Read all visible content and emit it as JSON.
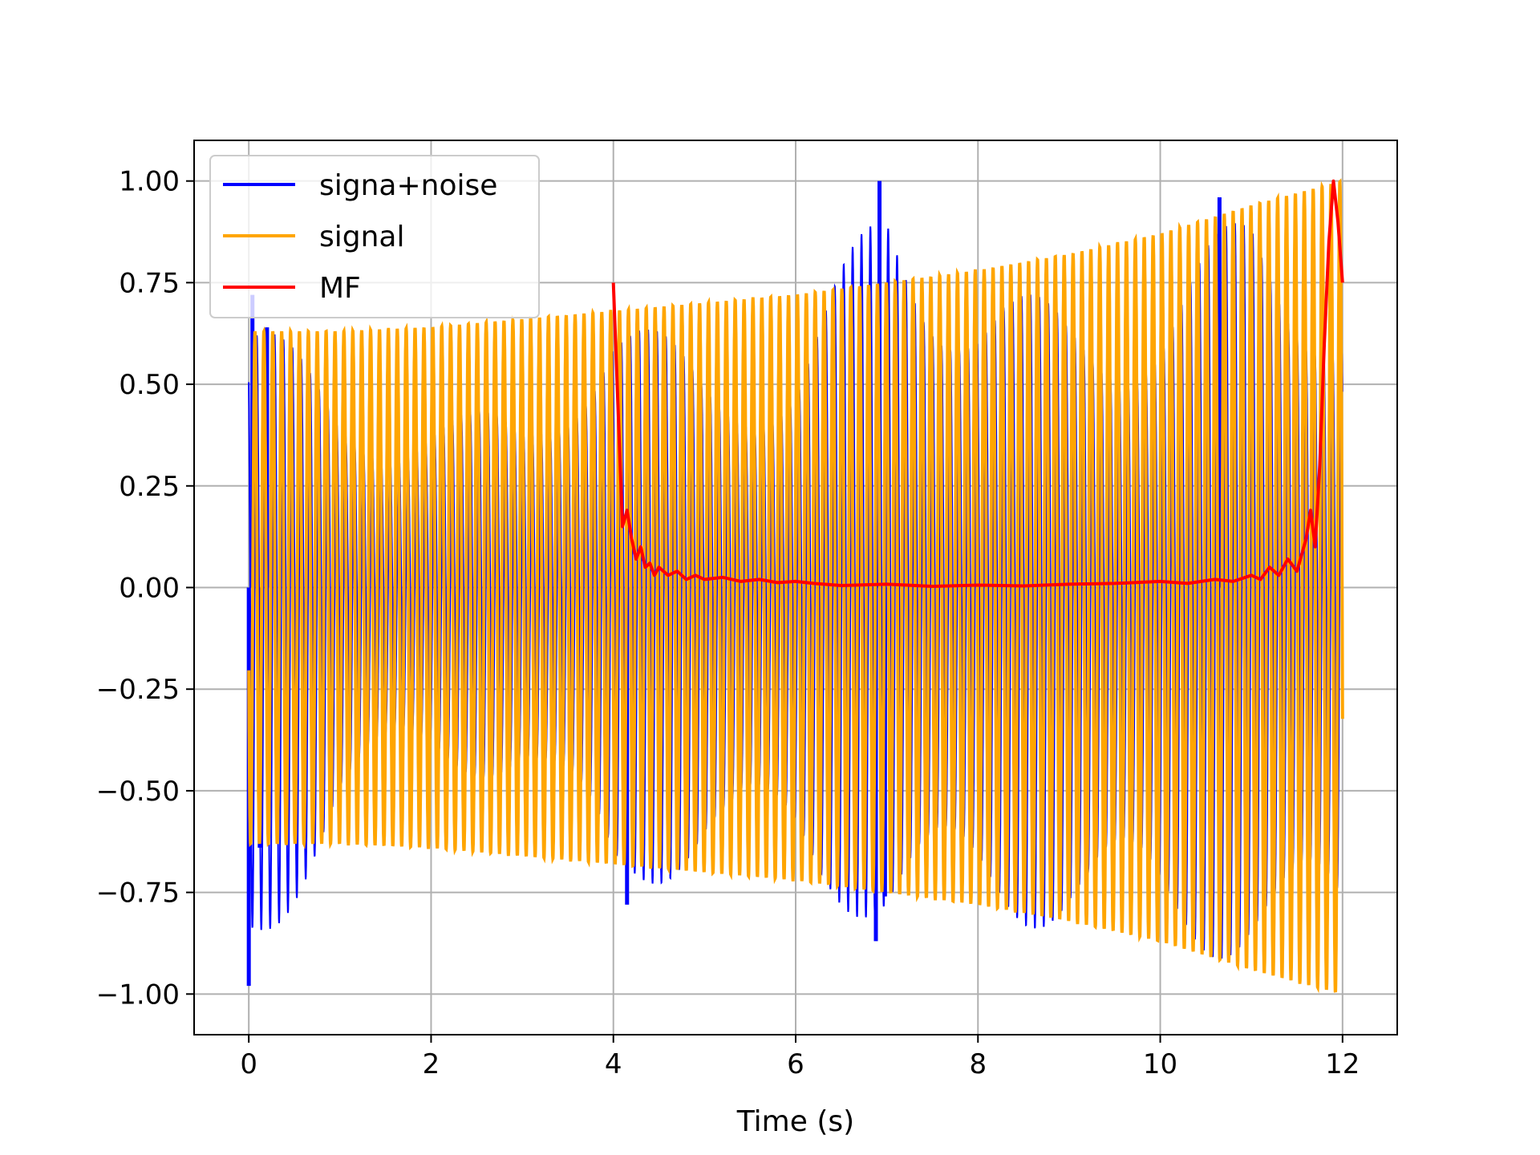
{
  "chart_data": {
    "type": "line",
    "title": "",
    "xlabel": "Time (s)",
    "ylabel": "",
    "xlim": [
      -0.6,
      12.6
    ],
    "ylim": [
      -1.1,
      1.1
    ],
    "grid": true,
    "legend_position": "top-left",
    "xticks": [
      0,
      2,
      4,
      6,
      8,
      10,
      12
    ],
    "xtick_labels": [
      "0",
      "2",
      "4",
      "6",
      "8",
      "10",
      "12"
    ],
    "yticks": [
      -1.0,
      -0.75,
      -0.5,
      -0.25,
      0.0,
      0.25,
      0.5,
      0.75,
      1.0
    ],
    "ytick_labels": [
      "−1.00",
      "−0.75",
      "−0.50",
      "−0.25",
      "0.00",
      "0.25",
      "0.50",
      "0.75",
      "1.00"
    ],
    "series": [
      {
        "name": "signa+noise",
        "color": "#0000ff",
        "envelope": {
          "x": [
            0,
            1,
            2,
            3,
            4,
            5,
            6,
            7,
            8,
            9,
            10,
            11,
            12
          ],
          "upper": [
            0.72,
            0.45,
            0.44,
            0.43,
            0.71,
            0.55,
            0.57,
            1.0,
            0.75,
            0.7,
            0.72,
            0.96,
            0.75
          ],
          "lower": [
            -0.98,
            -0.57,
            -0.45,
            -0.48,
            -0.78,
            -0.68,
            -0.7,
            -0.87,
            -0.82,
            -0.85,
            -0.9,
            -0.92,
            -0.98
          ]
        },
        "spikes": [
          {
            "x": 0.0,
            "y": -0.98
          },
          {
            "x": 0.04,
            "y": 0.72
          },
          {
            "x": 0.12,
            "y": -0.64
          },
          {
            "x": 0.2,
            "y": 0.64
          },
          {
            "x": 4.15,
            "y": -0.78
          },
          {
            "x": 6.88,
            "y": -0.87
          },
          {
            "x": 6.92,
            "y": 1.0
          },
          {
            "x": 6.98,
            "y": -0.76
          },
          {
            "x": 10.65,
            "y": 0.96
          }
        ]
      },
      {
        "name": "signal",
        "color": "#ffa500",
        "t_start": 0,
        "t_end": 12,
        "freq_hz": 10.25,
        "amplitude": {
          "x": [
            0,
            1,
            2,
            3,
            4,
            5,
            6,
            7,
            8,
            9,
            10,
            11,
            11.5,
            12
          ],
          "y": [
            0.63,
            0.63,
            0.64,
            0.66,
            0.68,
            0.7,
            0.72,
            0.75,
            0.78,
            0.82,
            0.87,
            0.94,
            0.97,
            1.0
          ]
        }
      },
      {
        "name": "MF",
        "color": "#ff0000",
        "x": [
          4.0,
          4.05,
          4.1,
          4.15,
          4.2,
          4.25,
          4.3,
          4.35,
          4.4,
          4.45,
          4.5,
          4.6,
          4.7,
          4.8,
          4.9,
          5.0,
          5.2,
          5.4,
          5.6,
          5.8,
          6.0,
          6.2,
          6.5,
          7.0,
          7.5,
          8.0,
          8.5,
          9.0,
          9.5,
          10.0,
          10.3,
          10.6,
          10.8,
          11.0,
          11.1,
          11.2,
          11.3,
          11.4,
          11.5,
          11.6,
          11.65,
          11.7,
          11.75,
          11.8,
          11.85,
          11.9,
          11.95,
          12.0
        ],
        "y": [
          0.75,
          0.45,
          0.15,
          0.19,
          0.12,
          0.07,
          0.1,
          0.05,
          0.06,
          0.03,
          0.05,
          0.03,
          0.04,
          0.02,
          0.03,
          0.02,
          0.025,
          0.015,
          0.02,
          0.012,
          0.015,
          0.01,
          0.005,
          0.008,
          0.003,
          0.006,
          0.004,
          0.008,
          0.01,
          0.015,
          0.01,
          0.02,
          0.015,
          0.03,
          0.02,
          0.05,
          0.03,
          0.07,
          0.04,
          0.12,
          0.19,
          0.1,
          0.3,
          0.6,
          0.85,
          1.0,
          0.9,
          0.75
        ]
      }
    ]
  }
}
